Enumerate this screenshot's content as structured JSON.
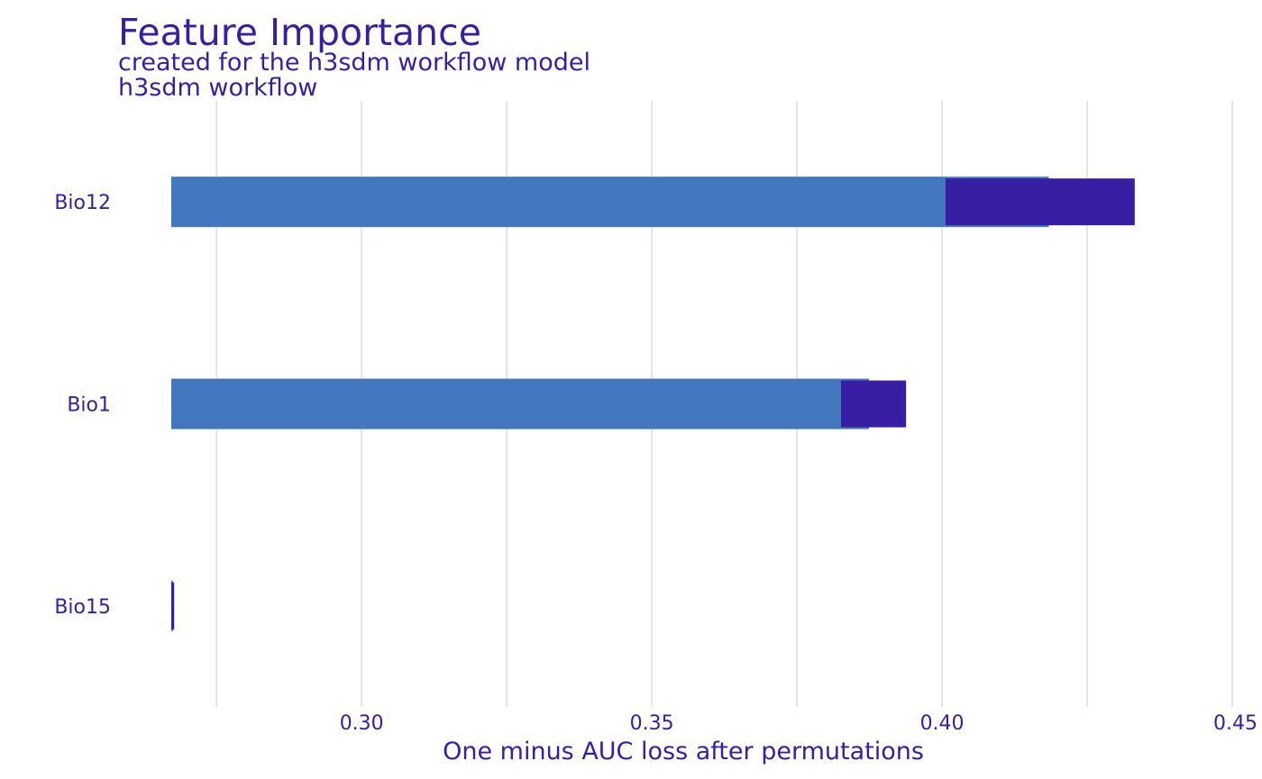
{
  "chart_data": {
    "type": "bar",
    "title": "Feature Importance",
    "subtitles": [
      "created for the h3sdm workflow model",
      "h3sdm workflow"
    ],
    "xlabel": "One minus AUC loss after permutations",
    "ylabel": "",
    "categories": [
      "Bio12",
      "Bio1",
      "Bio15"
    ],
    "baseline": 0.2672,
    "xlim": [
      0.2672,
      0.45
    ],
    "xticks": [
      0.3,
      0.35,
      0.4,
      0.45
    ],
    "xtick_labels": [
      "0.30",
      "0.35",
      "0.40",
      "0.45"
    ],
    "grid": true,
    "series": [
      {
        "values": [
          0.4184,
          0.3874,
          0.2675
        ],
        "color": "#4378bf"
      },
      {
        "boxes": [
          [
            0.4006,
            0.4332
          ],
          [
            0.3826,
            0.3938
          ],
          [
            0.2672,
            0.2677
          ]
        ],
        "color": "#371ea3"
      }
    ]
  }
}
